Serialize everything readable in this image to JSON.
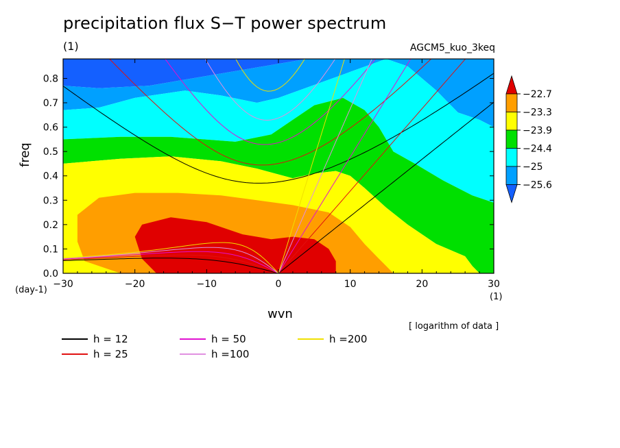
{
  "chart_data": {
    "type": "heatmap",
    "title": "precipitation flux S−T power spectrum",
    "subtitle": "(1)",
    "run_id": "AGCM5_kuo_3keq",
    "xlabel": "wvn",
    "ylabel": "freq",
    "x_unit": "(1)",
    "y_unit": "(day-1)",
    "note": "[ logarithm of data ]",
    "xlim": [
      -30,
      30
    ],
    "ylim": [
      0,
      0.88
    ],
    "x_ticks": [
      -30,
      -20,
      -10,
      0,
      10,
      20,
      30
    ],
    "y_ticks": [
      0.0,
      0.1,
      0.2,
      0.3,
      0.4,
      0.5,
      0.6,
      0.7,
      0.8
    ],
    "x_tick_labels": [
      "−30",
      "−20",
      "−10",
      "0",
      "10",
      "20",
      "30"
    ],
    "y_tick_labels": [
      "0.0",
      "0.1",
      "0.2",
      "0.3",
      "0.4",
      "0.5",
      "0.6",
      "0.7",
      "0.8"
    ],
    "colorbar": {
      "levels": [
        "−22.7",
        "−23.3",
        "−23.9",
        "−24.4",
        "−25",
        "−25.6"
      ],
      "colors": [
        "#e00000",
        "#ff9e00",
        "#ffff00",
        "#00e000",
        "#00ffff",
        "#00a0ff",
        "#1460ff"
      ]
    },
    "fill_colors": {
      "below_n25_6": "#1460ff",
      "n25_6_to_n25": "#00a0ff",
      "n25_to_n24_4": "#00ffff",
      "n24_4_to_n23_9": "#00e000",
      "n23_9_to_n23_3": "#ffff00",
      "n23_3_to_n22_7": "#ff9e00",
      "above_n22_7": "#e00000"
    },
    "dispersion_curves": [
      {
        "label": "h = 12",
        "h": 12,
        "color": "#000000"
      },
      {
        "label": "h = 25",
        "h": 25,
        "color": "#e01010"
      },
      {
        "label": "h = 50",
        "h": 50,
        "color": "#e010d0"
      },
      {
        "label": "h =100",
        "h": 100,
        "color": "#e090e0"
      },
      {
        "label": "h =200",
        "h": 200,
        "color": "#f0e000"
      }
    ]
  }
}
